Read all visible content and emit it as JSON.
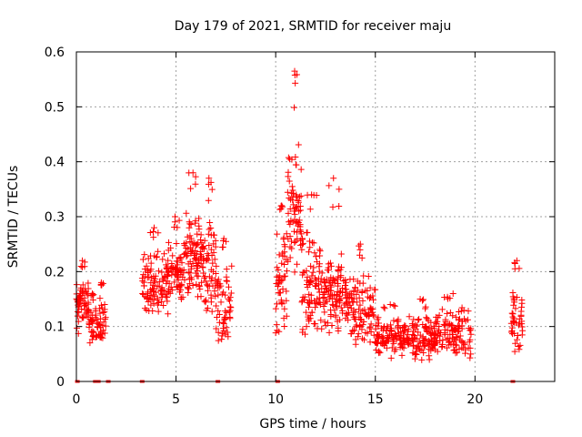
{
  "chart_data": {
    "type": "scatter",
    "title": "Day 179 of 2021, SRMTID for receiver maju",
    "xlabel": "GPS time / hours",
    "ylabel": "SRMTID / TECUs",
    "xlim": [
      0,
      24
    ],
    "ylim": [
      0,
      0.6
    ],
    "xticks": [
      0,
      5,
      10,
      15,
      20
    ],
    "yticks": [
      0,
      0.1,
      0.2,
      0.3,
      0.4,
      0.5,
      0.6
    ],
    "xtick_labels": [
      "0",
      "5",
      "10",
      "15",
      "20"
    ],
    "ytick_labels": [
      "0",
      "0.1",
      "0.2",
      "0.3",
      "0.4",
      "0.5",
      "0.6"
    ],
    "grid": true,
    "legend": "none",
    "marker": "+",
    "color": "#ff0000",
    "series": [
      {
        "name": "SRMTID",
        "clusters": [
          {
            "x_range": [
              0.0,
              0.6
            ],
            "y_range": [
              0.08,
              0.2
            ],
            "peak": 0.22,
            "count": 60
          },
          {
            "x_range": [
              0.6,
              1.0
            ],
            "y_range": [
              0.06,
              0.14
            ],
            "peak": 0.16,
            "count": 30
          },
          {
            "x_range": [
              1.0,
              1.5
            ],
            "y_range": [
              0.06,
              0.16
            ],
            "peak": 0.18,
            "count": 35
          },
          {
            "x_range": [
              3.3,
              4.5
            ],
            "y_range": [
              0.1,
              0.24
            ],
            "peak": 0.28,
            "count": 90
          },
          {
            "x_range": [
              4.5,
              5.4
            ],
            "y_range": [
              0.12,
              0.26
            ],
            "peak": 0.3,
            "count": 80
          },
          {
            "x_range": [
              5.4,
              6.3
            ],
            "y_range": [
              0.14,
              0.32
            ],
            "peak": 0.38,
            "count": 90
          },
          {
            "x_range": [
              6.3,
              7.0
            ],
            "y_range": [
              0.12,
              0.3
            ],
            "peak": 0.37,
            "count": 60
          },
          {
            "x_range": [
              7.0,
              7.8
            ],
            "y_range": [
              0.04,
              0.22
            ],
            "peak": 0.26,
            "count": 55
          },
          {
            "x_range": [
              10.0,
              10.6
            ],
            "y_range": [
              0.08,
              0.3
            ],
            "peak": 0.32,
            "count": 50
          },
          {
            "x_range": [
              10.6,
              11.3
            ],
            "y_range": [
              0.18,
              0.44
            ],
            "peak": 0.565,
            "count": 70
          },
          {
            "x_range": [
              11.3,
              12.3
            ],
            "y_range": [
              0.08,
              0.28
            ],
            "peak": 0.34,
            "count": 90
          },
          {
            "x_range": [
              12.3,
              13.5
            ],
            "y_range": [
              0.08,
              0.24
            ],
            "peak": 0.37,
            "count": 100
          },
          {
            "x_range": [
              13.5,
              15.0
            ],
            "y_range": [
              0.06,
              0.2
            ],
            "peak": 0.25,
            "count": 110
          },
          {
            "x_range": [
              15.0,
              16.5
            ],
            "y_range": [
              0.04,
              0.12
            ],
            "peak": 0.14,
            "count": 110
          },
          {
            "x_range": [
              16.5,
              18.0
            ],
            "y_range": [
              0.03,
              0.12
            ],
            "peak": 0.15,
            "count": 110
          },
          {
            "x_range": [
              18.0,
              19.8
            ],
            "y_range": [
              0.03,
              0.14
            ],
            "peak": 0.16,
            "count": 120
          },
          {
            "x_range": [
              21.8,
              22.4
            ],
            "y_range": [
              0.05,
              0.17
            ],
            "peak": 0.22,
            "count": 45
          }
        ],
        "zero_markers_x": [
          0.05,
          0.95,
          1.1,
          1.6,
          3.3,
          7.1,
          10.1,
          21.9
        ]
      }
    ]
  }
}
